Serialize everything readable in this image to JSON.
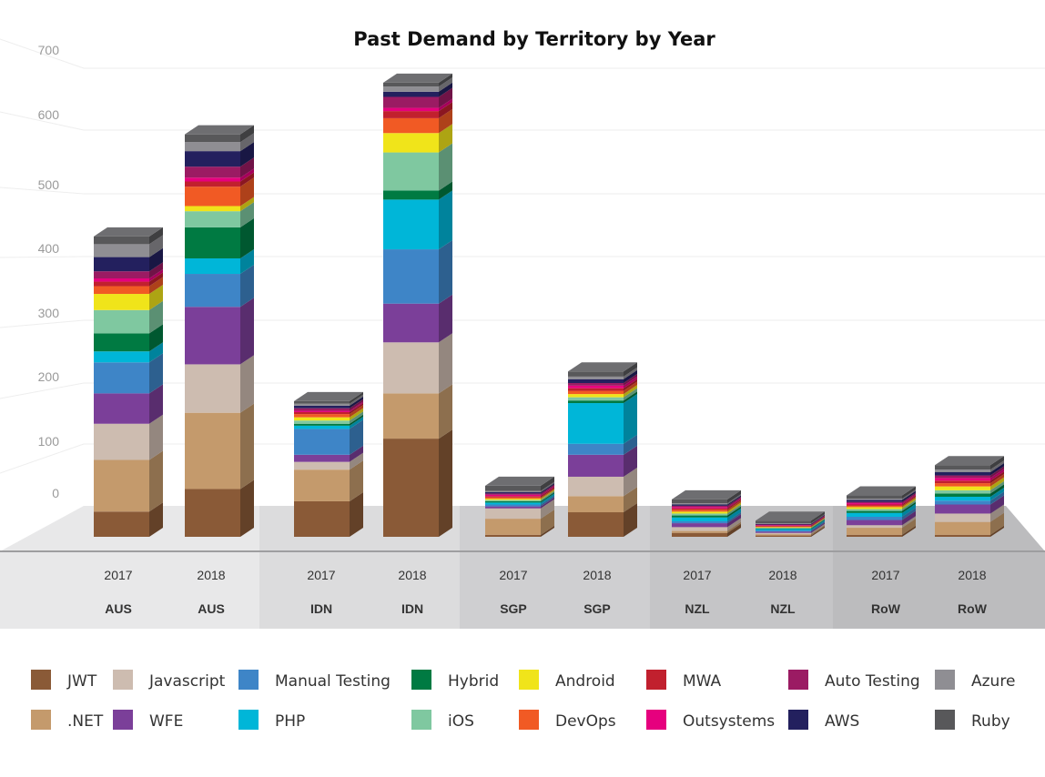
{
  "chart_data": {
    "type": "bar",
    "stacked": true,
    "title": "Past Demand by Territory by Year",
    "xlabel": "",
    "ylabel": "",
    "ylim": [
      0,
      700
    ],
    "yticks": [
      0,
      100,
      200,
      300,
      400,
      500,
      600,
      700
    ],
    "categories": [
      {
        "year": "2017",
        "territory": "AUS"
      },
      {
        "year": "2018",
        "territory": "AUS"
      },
      {
        "year": "2017",
        "territory": "IDN"
      },
      {
        "year": "2018",
        "territory": "IDN"
      },
      {
        "year": "2017",
        "territory": "SGP"
      },
      {
        "year": "2018",
        "territory": "SGP"
      },
      {
        "year": "2017",
        "territory": "NZL"
      },
      {
        "year": "2018",
        "territory": "NZL"
      },
      {
        "year": "2017",
        "territory": "RoW"
      },
      {
        "year": "2018",
        "territory": "RoW"
      }
    ],
    "series": [
      {
        "name": "JWT",
        "color": "#8a5a37",
        "values": [
          39,
          74,
          55,
          152,
          3,
          38,
          6,
          2,
          3,
          3
        ]
      },
      {
        "name": ".NET",
        "color": "#c49a6c",
        "values": [
          80,
          118,
          49,
          70,
          25,
          25,
          3,
          2,
          11,
          20
        ]
      },
      {
        "name": "Javascript",
        "color": "#cdbcb0",
        "values": [
          56,
          75,
          12,
          79,
          16,
          30,
          6,
          2,
          4,
          13
        ]
      },
      {
        "name": "WFE",
        "color": "#7b3f99",
        "values": [
          47,
          89,
          11,
          60,
          3,
          34,
          6,
          2,
          8,
          14
        ]
      },
      {
        "name": "Manual Testing",
        "color": "#3e85c7",
        "values": [
          48,
          51,
          40,
          84,
          3,
          17,
          3,
          2,
          5,
          6
        ]
      },
      {
        "name": "PHP",
        "color": "#00b6d8",
        "values": [
          17,
          24,
          5,
          77,
          3,
          63,
          6,
          2,
          6,
          6
        ]
      },
      {
        "name": "Hybrid",
        "color": "#007a42",
        "values": [
          28,
          48,
          3,
          14,
          2,
          4,
          3,
          1,
          3,
          5
        ]
      },
      {
        "name": "iOS",
        "color": "#7fc8a0",
        "values": [
          36,
          25,
          5,
          59,
          2,
          5,
          3,
          1,
          3,
          5
        ]
      },
      {
        "name": "Android",
        "color": "#f0e41a",
        "values": [
          25,
          8,
          5,
          30,
          2,
          5,
          3,
          1,
          3,
          6
        ]
      },
      {
        "name": "DevOps",
        "color": "#f15a24",
        "values": [
          12,
          30,
          5,
          23,
          2,
          5,
          3,
          1,
          2,
          5
        ]
      },
      {
        "name": "MWA",
        "color": "#c1202e",
        "values": [
          7,
          8,
          3,
          11,
          2,
          4,
          2,
          1,
          2,
          4
        ]
      },
      {
        "name": "Outsystems",
        "color": "#e6007e",
        "values": [
          5,
          6,
          2,
          5,
          2,
          4,
          2,
          1,
          2,
          4
        ]
      },
      {
        "name": "Auto Testing",
        "color": "#9b1b63",
        "values": [
          11,
          17,
          4,
          17,
          2,
          4,
          2,
          1,
          2,
          4
        ]
      },
      {
        "name": "AWS",
        "color": "#23205e",
        "values": [
          22,
          24,
          4,
          8,
          2,
          6,
          2,
          1,
          3,
          5
        ]
      },
      {
        "name": "Azure",
        "color": "#8f8e93",
        "values": [
          20,
          14,
          3,
          8,
          2,
          4,
          2,
          1,
          2,
          4
        ]
      },
      {
        "name": "Ruby",
        "color": "#58585a",
        "values": [
          12,
          12,
          4,
          6,
          8,
          8,
          6,
          4,
          5,
          7
        ]
      }
    ]
  }
}
